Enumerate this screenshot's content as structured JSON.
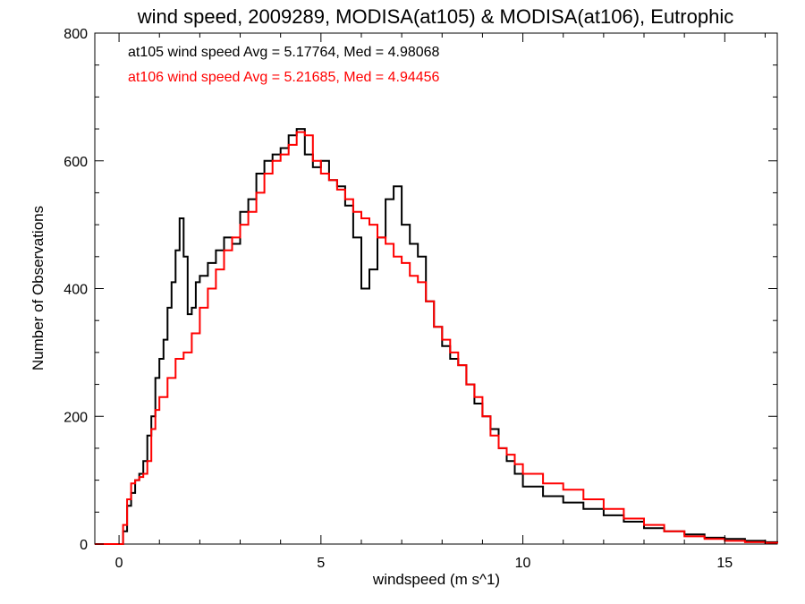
{
  "chart_data": {
    "type": "line",
    "title": "wind speed, 2009289, MODISA(at105) & MODISA(at106), Eutrophic",
    "xlabel": "windspeed (m s^1)",
    "ylabel": "Number of Observations",
    "xlim": [
      -0.6,
      16.3
    ],
    "ylim": [
      0,
      800
    ],
    "xticks": [
      0,
      5,
      10,
      15
    ],
    "yticks": [
      0,
      200,
      400,
      600,
      800
    ],
    "grid": false,
    "legend_position": "top-left",
    "series": [
      {
        "name": "at105",
        "color": "#000000",
        "annotation": "at105 wind speed Avg = 5.17764, Med = 4.98068",
        "x": [
          -0.6,
          0.0,
          0.1,
          0.2,
          0.3,
          0.4,
          0.5,
          0.6,
          0.7,
          0.8,
          0.9,
          1.0,
          1.1,
          1.2,
          1.3,
          1.4,
          1.5,
          1.6,
          1.7,
          1.8,
          1.9,
          2.0,
          2.2,
          2.4,
          2.6,
          2.8,
          3.0,
          3.2,
          3.4,
          3.6,
          3.8,
          4.0,
          4.2,
          4.4,
          4.6,
          4.8,
          5.0,
          5.2,
          5.4,
          5.6,
          5.8,
          6.0,
          6.2,
          6.4,
          6.6,
          6.8,
          7.0,
          7.2,
          7.4,
          7.6,
          7.8,
          8.0,
          8.2,
          8.4,
          8.6,
          8.8,
          9.0,
          9.2,
          9.4,
          9.6,
          9.8,
          10.0,
          10.5,
          11.0,
          11.5,
          12.0,
          12.5,
          13.0,
          13.5,
          14.0,
          14.5,
          15.0,
          15.5,
          16.0,
          16.3
        ],
        "y": [
          0,
          0,
          20,
          60,
          80,
          100,
          110,
          130,
          170,
          200,
          260,
          290,
          320,
          370,
          410,
          460,
          510,
          450,
          360,
          370,
          410,
          420,
          440,
          460,
          480,
          470,
          520,
          540,
          580,
          600,
          610,
          620,
          640,
          650,
          610,
          590,
          600,
          570,
          560,
          530,
          480,
          400,
          430,
          480,
          540,
          560,
          500,
          470,
          450,
          380,
          340,
          310,
          290,
          280,
          250,
          220,
          200,
          180,
          150,
          130,
          110,
          90,
          75,
          65,
          55,
          45,
          35,
          25,
          20,
          15,
          10,
          8,
          5,
          3,
          2
        ]
      },
      {
        "name": "at106",
        "color": "#ff0000",
        "annotation": "at106 wind speed Avg = 5.21685, Med = 4.94456",
        "x": [
          -0.6,
          0.0,
          0.1,
          0.2,
          0.3,
          0.4,
          0.5,
          0.6,
          0.7,
          0.8,
          0.9,
          1.0,
          1.2,
          1.4,
          1.6,
          1.8,
          2.0,
          2.2,
          2.4,
          2.6,
          2.8,
          3.0,
          3.2,
          3.4,
          3.6,
          3.8,
          4.0,
          4.2,
          4.4,
          4.6,
          4.8,
          5.0,
          5.2,
          5.4,
          5.6,
          5.8,
          6.0,
          6.2,
          6.4,
          6.6,
          6.8,
          7.0,
          7.2,
          7.4,
          7.6,
          7.8,
          8.0,
          8.2,
          8.4,
          8.6,
          8.8,
          9.0,
          9.2,
          9.4,
          9.6,
          9.8,
          10.0,
          10.5,
          11.0,
          11.5,
          12.0,
          12.5,
          13.0,
          13.5,
          14.0,
          14.5,
          15.0,
          15.5,
          16.0,
          16.3
        ],
        "y": [
          0,
          0,
          30,
          70,
          95,
          100,
          105,
          110,
          130,
          180,
          210,
          230,
          260,
          290,
          300,
          330,
          370,
          400,
          430,
          460,
          480,
          500,
          520,
          550,
          580,
          600,
          610,
          625,
          645,
          640,
          600,
          580,
          570,
          555,
          540,
          520,
          510,
          500,
          480,
          470,
          450,
          440,
          420,
          410,
          380,
          340,
          320,
          300,
          280,
          250,
          230,
          200,
          170,
          150,
          140,
          125,
          110,
          95,
          85,
          70,
          55,
          40,
          30,
          20,
          12,
          8,
          5,
          3,
          2,
          1
        ]
      }
    ]
  }
}
